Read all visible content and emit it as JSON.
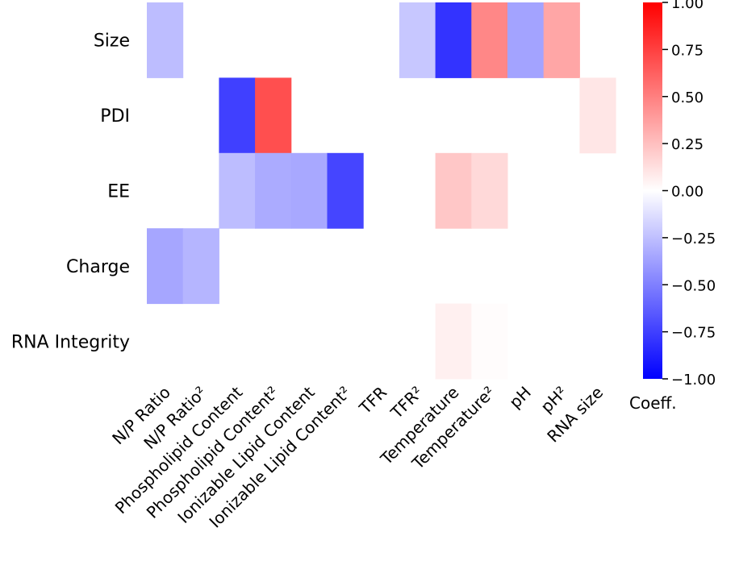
{
  "chart_data": {
    "type": "heatmap",
    "rows": [
      "Size",
      "PDI",
      "EE",
      "Charge",
      "RNA Integrity"
    ],
    "columns": [
      "N/P Ratio",
      "N/P Ratio²",
      "Phospholipid Content",
      "Phospholipid Content²",
      "Ionizable Lipid Content",
      "Ionizable Lipid Content²",
      "TFR",
      "TFR²",
      "Temperature",
      "Temperature²",
      "pH",
      "pH²",
      "RNA size"
    ],
    "values": [
      [
        -0.26,
        null,
        null,
        null,
        null,
        null,
        null,
        -0.22,
        -0.8,
        0.47,
        -0.36,
        0.35,
        null
      ],
      [
        null,
        null,
        -0.75,
        0.69,
        null,
        null,
        null,
        null,
        null,
        null,
        null,
        null,
        0.1
      ],
      [
        null,
        null,
        -0.26,
        -0.33,
        -0.34,
        -0.73,
        null,
        null,
        0.22,
        0.15,
        null,
        null,
        null
      ],
      [
        -0.35,
        -0.29,
        null,
        null,
        null,
        null,
        null,
        null,
        null,
        null,
        null,
        null,
        null
      ],
      [
        null,
        null,
        null,
        null,
        null,
        null,
        null,
        null,
        0.06,
        0.01,
        null,
        null,
        null
      ]
    ],
    "colormap": "bwr",
    "colorbar": {
      "label": "Coeff.",
      "range": [
        -1.0,
        1.0
      ],
      "ticks": [
        "1.00",
        "0.75",
        "0.50",
        "0.25",
        "0.00",
        "−0.25",
        "−0.50",
        "−0.75",
        "−1.00"
      ],
      "tick_values": [
        1,
        0.75,
        0.5,
        0.25,
        0,
        -0.25,
        -0.5,
        -0.75,
        -1
      ]
    },
    "colors": {
      "low": "#0000ff",
      "mid": "#ffffff",
      "high": "#ff0000"
    }
  }
}
